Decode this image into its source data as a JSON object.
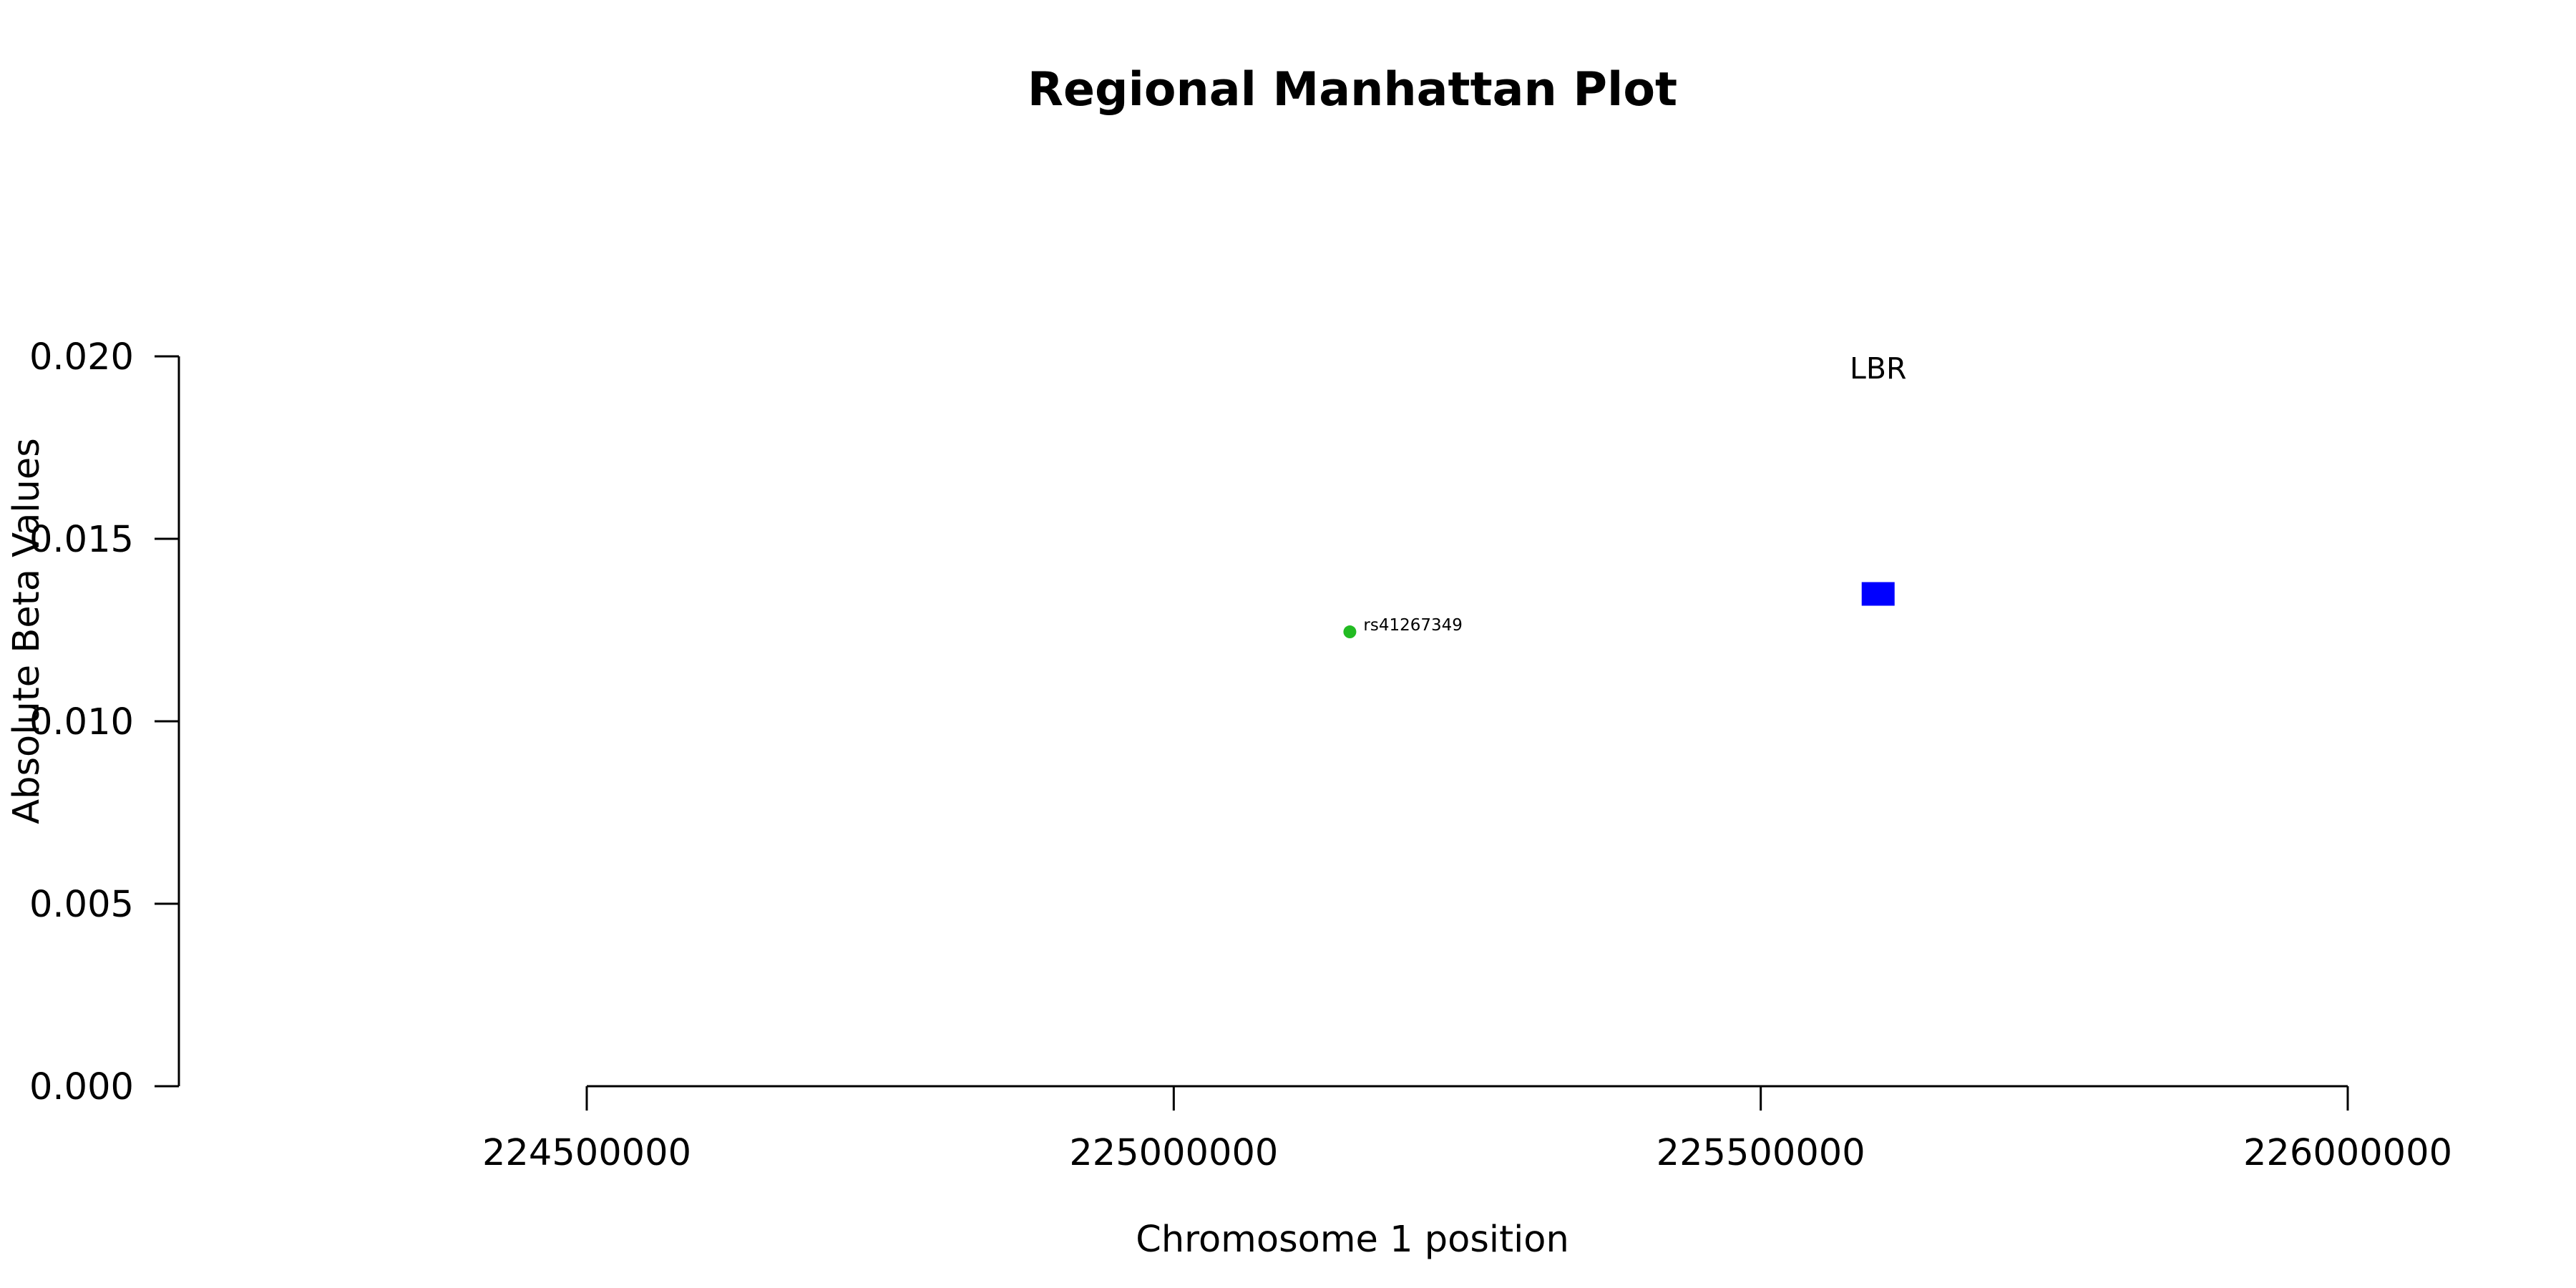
{
  "chart_data": {
    "type": "scatter",
    "title": "Regional Manhattan Plot",
    "xlabel": "Chromosome 1 position",
    "ylabel": "Absolute Beta Values",
    "xlim": [
      224500000,
      226000000
    ],
    "ylim": [
      0,
      0.02
    ],
    "x_ticks": [
      224500000,
      225000000,
      225500000,
      226000000
    ],
    "x_tick_labels": [
      "224500000",
      "225000000",
      "225500000",
      "226000000"
    ],
    "y_ticks": [
      0,
      0.005,
      0.01,
      0.015,
      0.02
    ],
    "y_tick_labels": [
      "0.000",
      "0.005",
      "0.010",
      "0.015",
      "0.020"
    ],
    "grid": false,
    "points": [
      {
        "x": 225150000,
        "y": 0.01245,
        "label": "rs41267349",
        "color": "#22bb22",
        "shape": "circle"
      }
    ],
    "genes": [
      {
        "x": 225600000,
        "y": 0.0135,
        "label": "LBR",
        "color": "#0000ff",
        "shape": "rectangle"
      }
    ]
  }
}
